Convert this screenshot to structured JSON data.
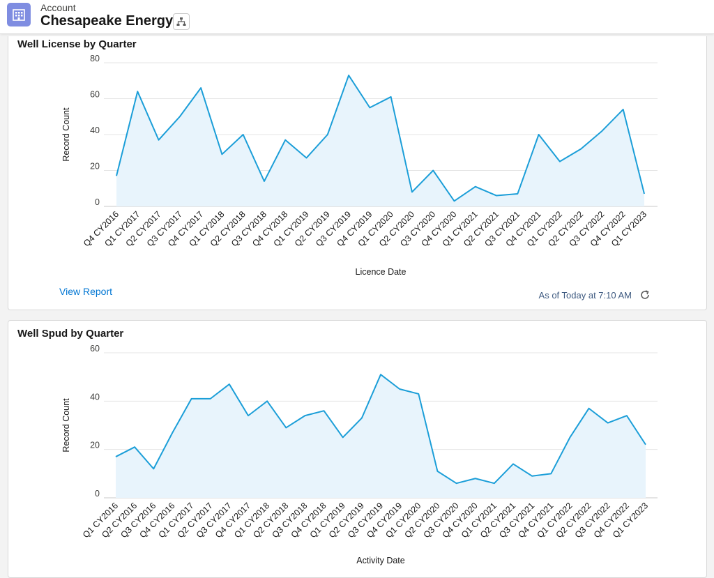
{
  "header": {
    "object_label": "Account",
    "record_name": "Chesapeake Energy",
    "icons": {
      "account": "building-icon",
      "hierarchy": "hierarchy-icon"
    }
  },
  "colors": {
    "line": "#1b9ed8",
    "area": "#e8f4fc",
    "grid": "#e5e5e5",
    "link": "#0176d3"
  },
  "cards": [
    {
      "title": "Well License by Quarter",
      "footer_link": "View Report",
      "timestamp": "As of Today at 7:10 AM",
      "refresh_icon": "refresh-icon"
    },
    {
      "title": "Well Spud by Quarter"
    }
  ],
  "chart_data": [
    {
      "type": "area",
      "title": "Well License by Quarter",
      "xlabel": "Licence Date",
      "ylabel": "Record Count",
      "ylim": [
        0,
        80
      ],
      "yticks": [
        0,
        20,
        40,
        60,
        80
      ],
      "grid": true,
      "categories": [
        "Q4 CY2016",
        "Q1 CY2017",
        "Q2 CY2017",
        "Q3 CY2017",
        "Q4 CY2017",
        "Q1 CY2018",
        "Q2 CY2018",
        "Q3 CY2018",
        "Q4 CY2018",
        "Q1 CY2019",
        "Q2 CY2019",
        "Q3 CY2019",
        "Q4 CY2019",
        "Q1 CY2020",
        "Q2 CY2020",
        "Q3 CY2020",
        "Q4 CY2020",
        "Q1 CY2021",
        "Q2 CY2021",
        "Q3 CY2021",
        "Q4 CY2021",
        "Q1 CY2022",
        "Q2 CY2022",
        "Q3 CY2022",
        "Q4 CY2022",
        "Q1 CY2023"
      ],
      "values": [
        17,
        64,
        37,
        50,
        66,
        29,
        40,
        14,
        37,
        27,
        40,
        73,
        55,
        61,
        8,
        20,
        3,
        11,
        6,
        7,
        40,
        25,
        32,
        42,
        54,
        7
      ]
    },
    {
      "type": "area",
      "title": "Well Spud by Quarter",
      "xlabel": "Activity Date",
      "ylabel": "Record Count",
      "ylim": [
        0,
        60
      ],
      "yticks": [
        0,
        20,
        40,
        60
      ],
      "grid": true,
      "categories": [
        "Q1 CY2016",
        "Q2 CY2016",
        "Q3 CY2016",
        "Q4 CY2016",
        "Q1 CY2017",
        "Q2 CY2017",
        "Q3 CY2017",
        "Q4 CY2017",
        "Q1 CY2018",
        "Q2 CY2018",
        "Q3 CY2018",
        "Q4 CY2018",
        "Q1 CY2019",
        "Q2 CY2019",
        "Q3 CY2019",
        "Q4 CY2019",
        "Q1 CY2020",
        "Q2 CY2020",
        "Q3 CY2020",
        "Q4 CY2020",
        "Q1 CY2021",
        "Q2 CY2021",
        "Q3 CY2021",
        "Q4 CY2021",
        "Q1 CY2022",
        "Q2 CY2022",
        "Q3 CY2022",
        "Q4 CY2022",
        "Q1 CY2023"
      ],
      "values": [
        17,
        21,
        12,
        27,
        41,
        41,
        47,
        34,
        40,
        29,
        34,
        36,
        25,
        33,
        51,
        45,
        43,
        11,
        6,
        8,
        6,
        14,
        9,
        10,
        25,
        37,
        31,
        34,
        22
      ]
    }
  ]
}
